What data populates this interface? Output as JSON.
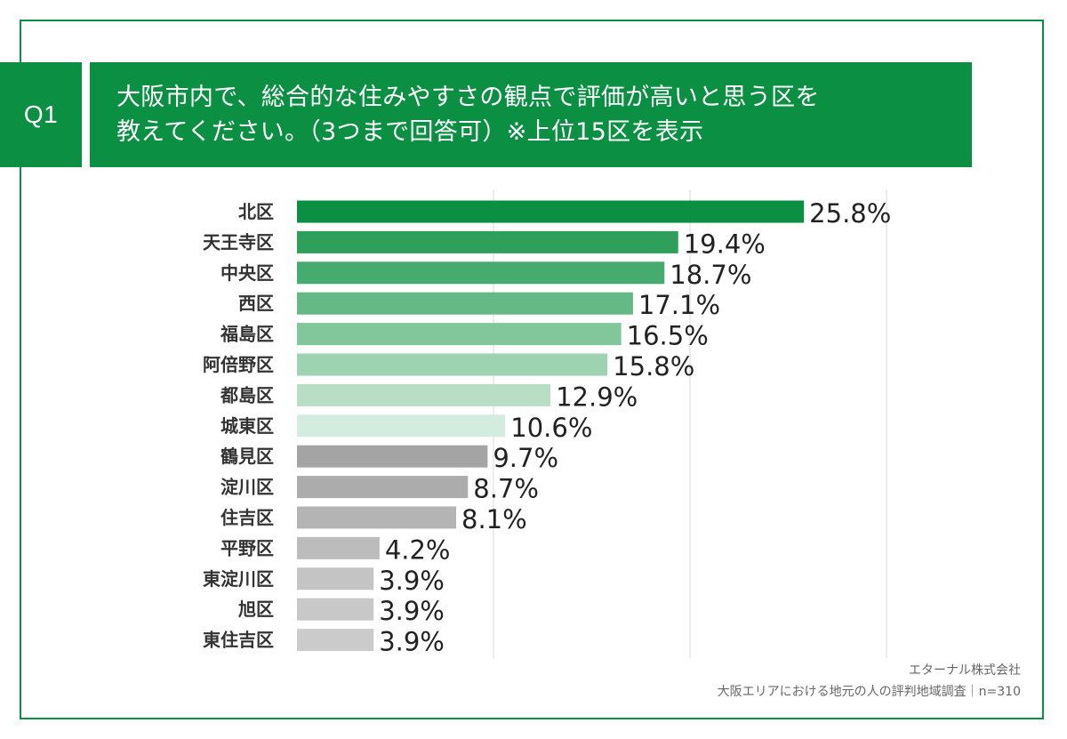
{
  "header": {
    "badge": "Q1",
    "question_line1": "大阪市内で、総合的な住みやすさの観点で評価が高いと思う区を",
    "question_line2": "教えてください。（3つまで回答可）※上位15区を表示"
  },
  "source": {
    "company": "エターナル株式会社",
    "survey": "大阪エリアにおける地元の人の評判地域調査｜n=310"
  },
  "colors": {
    "brand": "#0b8f43"
  },
  "chart_data": {
    "type": "bar",
    "orientation": "horizontal",
    "categories": [
      "北区",
      "天王寺区",
      "中央区",
      "西区",
      "福島区",
      "阿倍野区",
      "都島区",
      "城東区",
      "鶴見区",
      "淀川区",
      "住吉区",
      "平野区",
      "東淀川区",
      "旭区",
      "東住吉区"
    ],
    "values": [
      25.8,
      19.4,
      18.7,
      17.1,
      16.5,
      15.8,
      12.9,
      10.6,
      9.7,
      8.7,
      8.1,
      4.2,
      3.9,
      3.9,
      3.9
    ],
    "value_labels": [
      "25.8%",
      "19.4%",
      "18.7%",
      "17.1%",
      "16.5%",
      "15.8%",
      "12.9%",
      "10.6%",
      "9.7%",
      "8.7%",
      "8.1%",
      "4.2%",
      "3.9%",
      "3.9%",
      "3.9%"
    ],
    "bar_colors": [
      "#0b8f43",
      "#2f9f5c",
      "#46ab6e",
      "#65b985",
      "#82c69b",
      "#9dd3b0",
      "#b8dfc6",
      "#d4ecdf",
      "#a4a4a4",
      "#acacac",
      "#b4b4b4",
      "#bcbcbc",
      "#c4c4c4",
      "#c8c8c8",
      "#cbcbcb"
    ],
    "xlim": [
      0,
      30
    ],
    "grid": true,
    "grid_values": [
      10,
      20,
      30
    ],
    "xlabel": "",
    "ylabel": ""
  }
}
